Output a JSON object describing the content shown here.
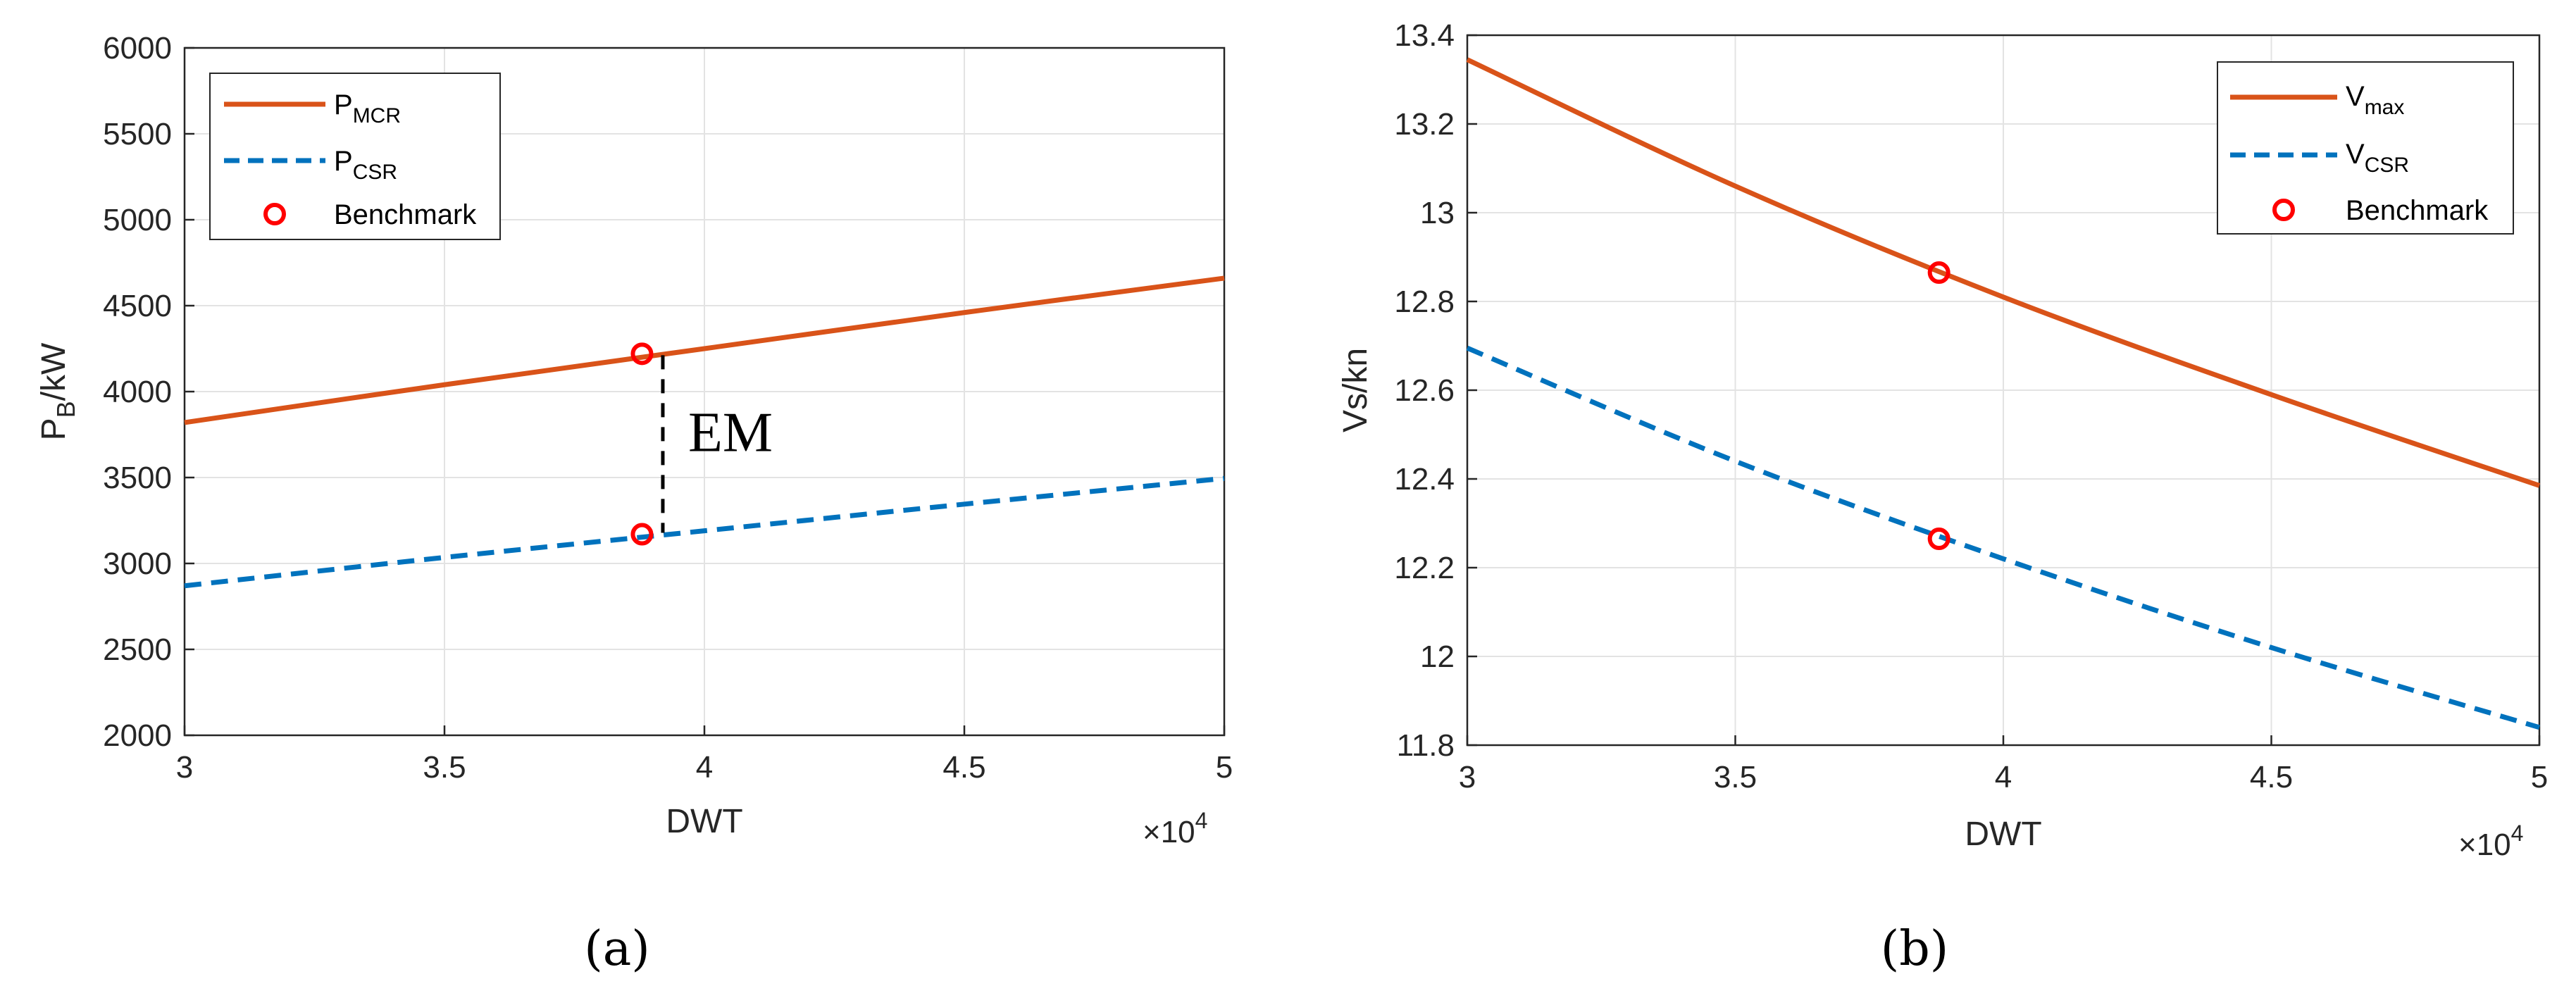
{
  "chart_data": [
    {
      "type": "line",
      "panel": "(a)",
      "xlabel": "DWT",
      "x_multiplier": "×10^4",
      "ylabel": "P_B/kW",
      "xlim": [
        3,
        5
      ],
      "ylim": [
        2000,
        6000
      ],
      "xticks": [
        3,
        3.5,
        4,
        4.5,
        5
      ],
      "xtick_labels": [
        "3",
        "3.5",
        "4",
        "4.5",
        "5"
      ],
      "yticks": [
        2000,
        2500,
        3000,
        3500,
        4000,
        4500,
        5000,
        5500,
        6000
      ],
      "ytick_labels": [
        "2000",
        "2500",
        "3000",
        "3500",
        "4000",
        "4500",
        "5000",
        "5500",
        "6000"
      ],
      "grid": true,
      "legend_position": "top-left",
      "series": [
        {
          "name": "P_MCR",
          "label_main": "P",
          "label_sub": "MCR",
          "style": "solid",
          "color": "#D95319",
          "x": [
            3,
            3.5,
            4,
            4.5,
            5
          ],
          "y": [
            3820,
            4040,
            4250,
            4460,
            4660
          ]
        },
        {
          "name": "P_CSR",
          "label_main": "P",
          "label_sub": "CSR",
          "style": "dashed",
          "color": "#0072BD",
          "x": [
            3,
            3.5,
            4,
            4.5,
            5
          ],
          "y": [
            2870,
            3035,
            3190,
            3345,
            3495
          ]
        }
      ],
      "markers": {
        "name": "Benchmark",
        "color": "#FF0000",
        "points": [
          {
            "x": 3.88,
            "y": 4220
          },
          {
            "x": 3.88,
            "y": 3170
          }
        ]
      },
      "annotation": {
        "text": "EM",
        "x": 3.92,
        "y_top": 4220,
        "y_bottom": 3170
      }
    },
    {
      "type": "line",
      "panel": "(b)",
      "xlabel": "DWT",
      "x_multiplier": "×10^4",
      "ylabel": "Vs/kn",
      "xlim": [
        3,
        5
      ],
      "ylim": [
        11.8,
        13.4
      ],
      "xticks": [
        3,
        3.5,
        4,
        4.5,
        5
      ],
      "xtick_labels": [
        "3",
        "3.5",
        "4",
        "4.5",
        "5"
      ],
      "yticks": [
        11.8,
        12,
        12.2,
        12.4,
        12.6,
        12.8,
        13,
        13.2,
        13.4
      ],
      "ytick_labels": [
        "11.8",
        "12",
        "12.2",
        "12.4",
        "12.6",
        "12.8",
        "13",
        "13.2",
        "13.4"
      ],
      "grid": true,
      "legend_position": "top-right",
      "series": [
        {
          "name": "V_max",
          "label_main": "V",
          "label_sub": "max",
          "style": "solid",
          "color": "#D95319",
          "x": [
            3,
            3.5,
            4,
            4.5,
            5
          ],
          "y": [
            13.345,
            13.06,
            12.81,
            12.59,
            12.385
          ]
        },
        {
          "name": "V_CSR",
          "label_main": "V",
          "label_sub": "CSR",
          "style": "dashed",
          "color": "#0072BD",
          "x": [
            3,
            3.5,
            4,
            4.5,
            5
          ],
          "y": [
            12.695,
            12.44,
            12.22,
            12.02,
            11.84
          ]
        }
      ],
      "markers": {
        "name": "Benchmark",
        "color": "#FF0000",
        "points": [
          {
            "x": 3.88,
            "y": 12.865
          },
          {
            "x": 3.88,
            "y": 12.265
          }
        ]
      }
    }
  ],
  "multiplier": {
    "base": "×10",
    "exp": "4"
  },
  "ylabel_a": {
    "main": "P",
    "sub": "B",
    "rest": "/kW"
  }
}
